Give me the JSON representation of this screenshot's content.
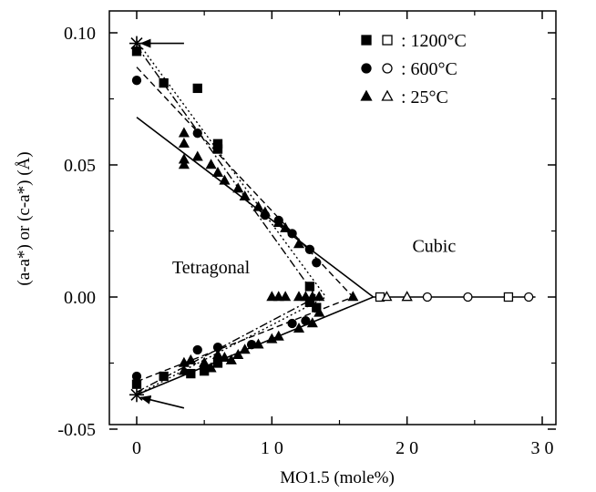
{
  "chart_data": {
    "type": "scatter",
    "xlabel": "MO1.5 (mole%)",
    "ylabel": "(a-a*) or (c-a*) (Å)",
    "xlim": [
      0,
      30
    ],
    "ylim": [
      -0.05,
      0.11
    ],
    "x_ticks": [
      0,
      10,
      20,
      30
    ],
    "x_tick_labels": [
      "0",
      "1 0",
      "2 0",
      "3 0"
    ],
    "y_ticks": [
      -0.05,
      0.0,
      0.05,
      0.1
    ],
    "y_tick_labels": [
      "-0.05",
      "0.00",
      "0.05",
      "0.10"
    ],
    "grid": false,
    "legend": {
      "placement": "top-right",
      "entries": [
        {
          "label": ": 1200°C",
          "filled": "square",
          "open": "square"
        },
        {
          "label": ": 600°C",
          "filled": "circle",
          "open": "circle"
        },
        {
          "label": ": 25°C",
          "filled": "triangle",
          "open": "triangle"
        }
      ]
    },
    "annotations": [
      {
        "text": "Tetragonal",
        "x": 5.5,
        "y": 0.009
      },
      {
        "text": "Cubic",
        "x": 22,
        "y": 0.017
      }
    ],
    "series": [
      {
        "name": "1200°C",
        "marker": "square",
        "filled": true,
        "points": [
          [
            0,
            0.093
          ],
          [
            2,
            0.081
          ],
          [
            4.5,
            0.079
          ],
          [
            6,
            0.058
          ],
          [
            6,
            0.056
          ],
          [
            12.8,
            0.004
          ],
          [
            12.8,
            -0.002
          ],
          [
            13.3,
            -0.004
          ],
          [
            0,
            -0.033
          ],
          [
            2,
            -0.03
          ],
          [
            4,
            -0.029
          ],
          [
            5,
            -0.028
          ],
          [
            6,
            -0.025
          ]
        ]
      },
      {
        "name": "1200°C",
        "marker": "square",
        "filled": false,
        "points": [
          [
            18,
            0.0
          ],
          [
            27.5,
            0.0
          ]
        ]
      },
      {
        "name": "600°C",
        "marker": "circle",
        "filled": true,
        "points": [
          [
            0,
            0.082
          ],
          [
            4.5,
            0.062
          ],
          [
            9.5,
            0.031
          ],
          [
            10.5,
            0.029
          ],
          [
            11.5,
            0.024
          ],
          [
            12.8,
            0.018
          ],
          [
            13.3,
            0.013
          ],
          [
            0,
            -0.03
          ],
          [
            4.5,
            -0.02
          ],
          [
            6,
            -0.019
          ],
          [
            8.5,
            -0.018
          ],
          [
            11.5,
            -0.01
          ],
          [
            12.5,
            -0.009
          ]
        ]
      },
      {
        "name": "600°C",
        "marker": "circle",
        "filled": false,
        "points": [
          [
            21.5,
            0.0
          ],
          [
            24.5,
            0.0
          ],
          [
            29,
            0.0
          ]
        ]
      },
      {
        "name": "25°C",
        "marker": "triangle",
        "filled": true,
        "points": [
          [
            3.5,
            0.062
          ],
          [
            3.5,
            0.058
          ],
          [
            3.5,
            0.052
          ],
          [
            3.5,
            0.05
          ],
          [
            4.5,
            0.053
          ],
          [
            5.5,
            0.05
          ],
          [
            6,
            0.047
          ],
          [
            6.5,
            0.044
          ],
          [
            7.5,
            0.041
          ],
          [
            8,
            0.038
          ],
          [
            9,
            0.034
          ],
          [
            9.5,
            0.032
          ],
          [
            10.5,
            0.028
          ],
          [
            11,
            0.026
          ],
          [
            12,
            0.02
          ],
          [
            10,
            0.0
          ],
          [
            10.5,
            0.0
          ],
          [
            11,
            0.0
          ],
          [
            12,
            0.0
          ],
          [
            12.5,
            0.0
          ],
          [
            13,
            0.0
          ],
          [
            13.5,
            0.0
          ],
          [
            16,
            0.0
          ],
          [
            20,
            0.0
          ],
          [
            3.5,
            -0.025
          ],
          [
            3.5,
            -0.028
          ],
          [
            4,
            -0.024
          ],
          [
            5,
            -0.025
          ],
          [
            5.5,
            -0.027
          ],
          [
            6,
            -0.022
          ],
          [
            6.5,
            -0.023
          ],
          [
            7,
            -0.024
          ],
          [
            7.5,
            -0.022
          ],
          [
            8,
            -0.02
          ],
          [
            9,
            -0.018
          ],
          [
            10,
            -0.016
          ],
          [
            10.5,
            -0.015
          ],
          [
            12,
            -0.012
          ],
          [
            13,
            -0.01
          ],
          [
            13.5,
            -0.006
          ]
        ]
      },
      {
        "name": "25°C",
        "marker": "triangle",
        "filled": false,
        "points": [
          [
            18.5,
            0.0
          ],
          [
            20,
            0.0
          ]
        ]
      }
    ],
    "fit_lines": [
      {
        "style": "solid",
        "points": [
          [
            0,
            0.068
          ],
          [
            17.5,
            0.0
          ]
        ]
      },
      {
        "style": "solid",
        "points": [
          [
            0,
            -0.037
          ],
          [
            17.5,
            0.0
          ]
        ]
      },
      {
        "style": "solid",
        "points": [
          [
            17.5,
            0.0
          ],
          [
            29.5,
            0.0
          ]
        ]
      },
      {
        "style": "dashed",
        "points": [
          [
            0,
            0.087
          ],
          [
            16,
            0.0
          ]
        ]
      },
      {
        "style": "dashed",
        "points": [
          [
            0,
            -0.032
          ],
          [
            16,
            0.0
          ]
        ]
      },
      {
        "style": "dotted",
        "points": [
          [
            0,
            0.097
          ],
          [
            14,
            0.0
          ]
        ]
      },
      {
        "style": "dotted",
        "points": [
          [
            0,
            -0.037
          ],
          [
            14,
            0.0
          ]
        ]
      },
      {
        "style": "dashdot",
        "points": [
          [
            0,
            0.095
          ],
          [
            13.3,
            0.0
          ]
        ]
      },
      {
        "style": "dashdot",
        "points": [
          [
            0,
            -0.036
          ],
          [
            13.3,
            0.0
          ]
        ]
      }
    ],
    "reference_points": [
      {
        "marker": "star",
        "x": 0,
        "y": 0.096
      },
      {
        "marker": "star",
        "x": 0,
        "y": -0.037
      }
    ],
    "arrows": [
      {
        "from": [
          3.5,
          0.096
        ],
        "to": [
          0.3,
          0.096
        ]
      },
      {
        "from": [
          3.5,
          -0.042
        ],
        "to": [
          0.3,
          -0.038
        ]
      }
    ]
  }
}
